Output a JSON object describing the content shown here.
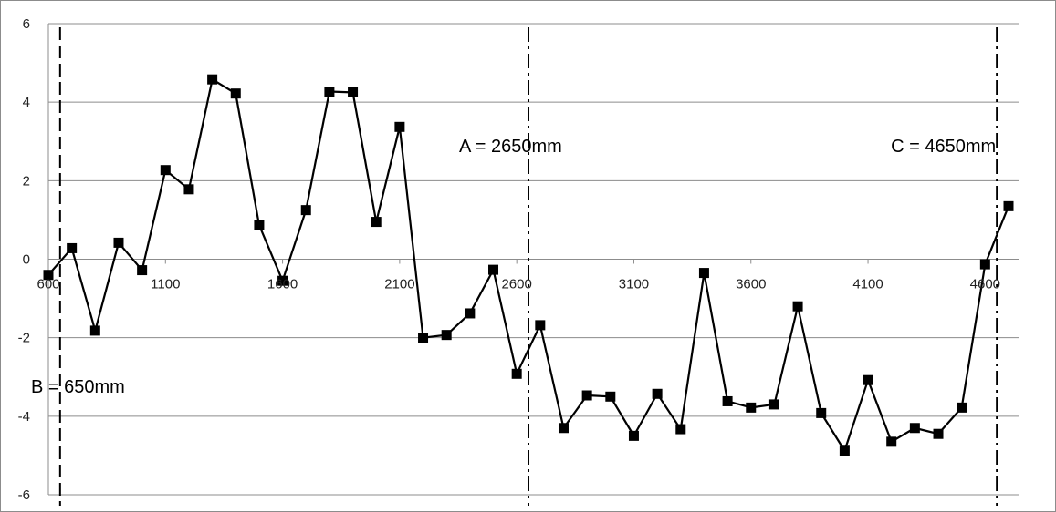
{
  "chart_data": {
    "type": "line",
    "title": "",
    "xlabel": "",
    "ylabel": "",
    "xlim": [
      600,
      4700
    ],
    "ylim": [
      -6,
      6
    ],
    "x_ticks": [
      600,
      1100,
      1600,
      2100,
      2600,
      3100,
      3600,
      4100,
      4600
    ],
    "y_ticks": [
      -6,
      -4,
      -2,
      0,
      2,
      4,
      6
    ],
    "grid": "horizontal",
    "legend": "none",
    "series": [
      {
        "color": "#000000",
        "marker": "square",
        "points": [
          {
            "x": 600,
            "y": -0.4
          },
          {
            "x": 700,
            "y": 0.28
          },
          {
            "x": 800,
            "y": -1.82
          },
          {
            "x": 900,
            "y": 0.42
          },
          {
            "x": 1000,
            "y": -0.28
          },
          {
            "x": 1100,
            "y": 2.27
          },
          {
            "x": 1200,
            "y": 1.78
          },
          {
            "x": 1300,
            "y": 4.58
          },
          {
            "x": 1400,
            "y": 4.22
          },
          {
            "x": 1500,
            "y": 0.87
          },
          {
            "x": 1600,
            "y": -0.55
          },
          {
            "x": 1700,
            "y": 1.25
          },
          {
            "x": 1800,
            "y": 4.27
          },
          {
            "x": 1900,
            "y": 4.25
          },
          {
            "x": 2000,
            "y": 0.95
          },
          {
            "x": 2100,
            "y": 3.37
          },
          {
            "x": 2200,
            "y": -2.0
          },
          {
            "x": 2300,
            "y": -1.93
          },
          {
            "x": 2400,
            "y": -1.38
          },
          {
            "x": 2500,
            "y": -0.27
          },
          {
            "x": 2600,
            "y": -2.92
          },
          {
            "x": 2700,
            "y": -1.68
          },
          {
            "x": 2800,
            "y": -4.3
          },
          {
            "x": 2900,
            "y": -3.47
          },
          {
            "x": 3000,
            "y": -3.5
          },
          {
            "x": 3100,
            "y": -4.5
          },
          {
            "x": 3200,
            "y": -3.43
          },
          {
            "x": 3300,
            "y": -4.33
          },
          {
            "x": 3400,
            "y": -0.35
          },
          {
            "x": 3500,
            "y": -3.62
          },
          {
            "x": 3600,
            "y": -3.78
          },
          {
            "x": 3700,
            "y": -3.7
          },
          {
            "x": 3800,
            "y": -1.2
          },
          {
            "x": 3900,
            "y": -3.92
          },
          {
            "x": 4000,
            "y": -4.88
          },
          {
            "x": 4100,
            "y": -3.08
          },
          {
            "x": 4200,
            "y": -4.65
          },
          {
            "x": 4300,
            "y": -4.3
          },
          {
            "x": 4400,
            "y": -4.45
          },
          {
            "x": 4500,
            "y": -3.78
          },
          {
            "x": 4600,
            "y": -0.13
          },
          {
            "x": 4700,
            "y": 1.35
          }
        ]
      }
    ],
    "reference_lines": [
      {
        "x": 650,
        "label": "B = 650mm",
        "style": "dashed"
      },
      {
        "x": 2650,
        "label": "A = 2650mm",
        "style": "dash-dot"
      },
      {
        "x": 4650,
        "label": "C = 4650mm",
        "style": "dash-dot"
      }
    ]
  }
}
